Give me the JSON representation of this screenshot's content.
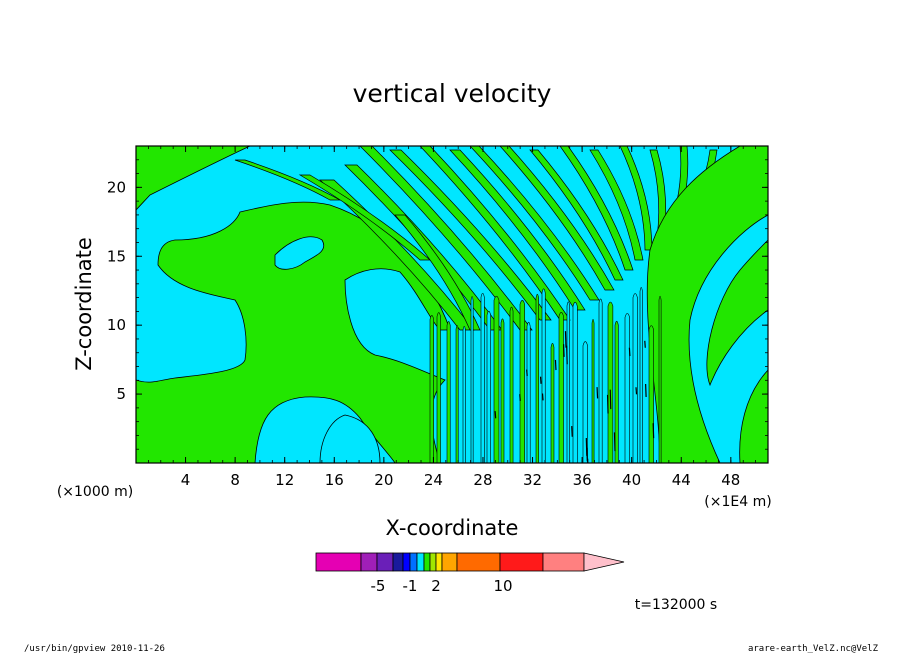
{
  "chart_data": {
    "type": "heatmap",
    "title": "vertical velocity",
    "xlabel": "X-coordinate",
    "ylabel": "Z-coordinate",
    "x_unit_left": "(×1000 m)",
    "x_unit_right": "(×1E4 m)",
    "xlim": [
      0,
      51
    ],
    "ylim": [
      0,
      23
    ],
    "x_ticks": [
      4,
      8,
      12,
      16,
      20,
      24,
      28,
      32,
      36,
      40,
      44,
      48
    ],
    "y_ticks": [
      5,
      10,
      15,
      20
    ],
    "colorbar": {
      "levels": [
        "magenta",
        "purple1",
        "purple2",
        "navy",
        "blue",
        "dodger",
        "cyan",
        "green",
        "lime",
        "yellow",
        "gold",
        "orange",
        "red",
        "salmon"
      ],
      "colors": [
        "#e500b3",
        "#a01fb8",
        "#6a1fb8",
        "#1a1a9c",
        "#0000ff",
        "#0070ff",
        "#00e6ff",
        "#22e600",
        "#a0e600",
        "#ffe600",
        "#ffa500",
        "#ff6a00",
        "#ff1a1a",
        "#ff8080"
      ],
      "tail_color": "#ffc0cb",
      "labels": [
        "-5",
        "-1",
        "2",
        "10"
      ]
    },
    "field_colors": {
      "positive": "#22e600",
      "negative": "#00e6ff"
    },
    "time_label": "t=132000 s"
  },
  "footer": {
    "left": "/usr/bin/gpview   2010-11-26",
    "right": "arare-earth_VelZ.nc@VelZ"
  }
}
